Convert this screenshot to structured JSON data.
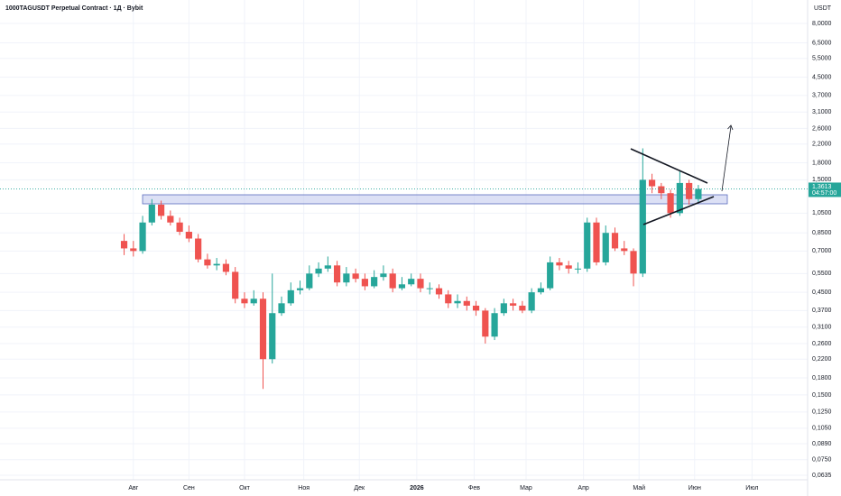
{
  "chart_data": {
    "type": "candlestick",
    "title": "1000TAGUSDT Perpetual Contract · 1Д · Bybit",
    "currency": "USDT",
    "log_scale": true,
    "grid": true,
    "up_color": "#26a69a",
    "down_color": "#ef5350",
    "x": [
      0,
      5,
      10,
      15,
      20,
      25,
      30,
      35,
      40,
      45,
      50,
      55,
      60,
      65,
      70,
      75,
      80,
      85,
      90,
      95,
      100,
      105,
      110,
      115,
      120,
      125,
      130,
      135,
      140,
      145,
      150,
      155,
      160,
      165,
      170,
      175,
      180,
      185,
      190,
      195,
      200,
      205,
      210,
      215,
      220,
      225,
      230,
      235,
      240,
      245,
      250,
      255,
      260,
      265,
      270,
      275,
      280,
      285,
      290,
      295,
      300,
      305,
      310
    ],
    "open": [
      0.78,
      0.72,
      0.7,
      0.95,
      1.15,
      1.02,
      0.95,
      0.86,
      0.8,
      0.64,
      0.6,
      0.61,
      0.56,
      0.42,
      0.4,
      0.42,
      0.22,
      0.36,
      0.4,
      0.46,
      0.47,
      0.55,
      0.58,
      0.6,
      0.5,
      0.55,
      0.52,
      0.48,
      0.53,
      0.55,
      0.47,
      0.49,
      0.52,
      0.47,
      0.47,
      0.44,
      0.4,
      0.41,
      0.39,
      0.37,
      0.28,
      0.36,
      0.4,
      0.39,
      0.37,
      0.45,
      0.47,
      0.62,
      0.6,
      0.58,
      0.58,
      0.95,
      0.62,
      0.85,
      0.72,
      0.7,
      0.55,
      1.5,
      1.4,
      1.3,
      1.05,
      1.45,
      1.22
    ],
    "high": [
      0.84,
      0.78,
      1.02,
      1.22,
      1.2,
      1.08,
      1.0,
      0.92,
      0.84,
      0.68,
      0.65,
      0.64,
      0.59,
      0.45,
      0.46,
      0.45,
      0.55,
      0.43,
      0.5,
      0.51,
      0.6,
      0.62,
      0.66,
      0.63,
      0.59,
      0.58,
      0.55,
      0.57,
      0.6,
      0.58,
      0.53,
      0.55,
      0.55,
      0.5,
      0.49,
      0.46,
      0.44,
      0.43,
      0.41,
      0.38,
      0.38,
      0.42,
      0.42,
      0.41,
      0.47,
      0.5,
      0.66,
      0.65,
      0.63,
      0.62,
      1.0,
      1.0,
      0.92,
      0.9,
      0.78,
      0.72,
      2.1,
      1.6,
      1.45,
      1.35,
      1.65,
      1.5,
      1.42
    ],
    "low": [
      0.67,
      0.66,
      0.68,
      0.92,
      0.98,
      0.92,
      0.83,
      0.77,
      0.62,
      0.58,
      0.57,
      0.54,
      0.4,
      0.38,
      0.39,
      0.16,
      0.21,
      0.35,
      0.39,
      0.44,
      0.46,
      0.53,
      0.56,
      0.48,
      0.48,
      0.5,
      0.46,
      0.47,
      0.51,
      0.45,
      0.46,
      0.48,
      0.45,
      0.44,
      0.42,
      0.38,
      0.38,
      0.37,
      0.35,
      0.26,
      0.27,
      0.35,
      0.37,
      0.36,
      0.36,
      0.44,
      0.46,
      0.57,
      0.55,
      0.55,
      0.56,
      0.6,
      0.6,
      0.7,
      0.67,
      0.48,
      0.53,
      1.3,
      1.22,
      1.0,
      1.02,
      1.15,
      1.18
    ],
    "close": [
      0.72,
      0.7,
      0.95,
      1.15,
      1.02,
      0.95,
      0.86,
      0.8,
      0.64,
      0.6,
      0.61,
      0.56,
      0.42,
      0.4,
      0.42,
      0.22,
      0.36,
      0.4,
      0.46,
      0.47,
      0.55,
      0.58,
      0.6,
      0.5,
      0.55,
      0.52,
      0.48,
      0.53,
      0.55,
      0.47,
      0.49,
      0.52,
      0.47,
      0.47,
      0.44,
      0.4,
      0.41,
      0.39,
      0.37,
      0.28,
      0.36,
      0.4,
      0.39,
      0.37,
      0.45,
      0.47,
      0.62,
      0.6,
      0.58,
      0.58,
      0.95,
      0.62,
      0.85,
      0.72,
      0.7,
      0.55,
      1.5,
      1.4,
      1.3,
      1.05,
      1.45,
      1.22,
      1.36
    ],
    "xlim": [
      -67,
      369
    ],
    "xticks": [
      {
        "value": 5,
        "label": "Авг"
      },
      {
        "value": 35,
        "label": "Сен"
      },
      {
        "value": 65,
        "label": "Окт"
      },
      {
        "value": 97,
        "label": "Ноя"
      },
      {
        "value": 127,
        "label": "Дек"
      },
      {
        "value": 158,
        "label": "2026"
      },
      {
        "value": 189,
        "label": "Фев"
      },
      {
        "value": 217,
        "label": "Мар"
      },
      {
        "value": 248,
        "label": "Апр"
      },
      {
        "value": 278,
        "label": "Май"
      },
      {
        "value": 308,
        "label": "Июн"
      },
      {
        "value": 339,
        "label": "Июл"
      }
    ],
    "ylim": [
      0.0605,
      10.28
    ],
    "yticks": [
      {
        "value": 8,
        "label": "8,0000"
      },
      {
        "value": 6.5,
        "label": "6,5000"
      },
      {
        "value": 5.5,
        "label": "5,5000"
      },
      {
        "value": 4.5,
        "label": "4,5000"
      },
      {
        "value": 3.7,
        "label": "3,7000"
      },
      {
        "value": 3.1,
        "label": "3,1000"
      },
      {
        "value": 2.6,
        "label": "2,6000"
      },
      {
        "value": 2.2,
        "label": "2,2000"
      },
      {
        "value": 1.8,
        "label": "1,8000"
      },
      {
        "value": 1.5,
        "label": "1,5000"
      },
      {
        "value": 1.05,
        "label": "1,0500"
      },
      {
        "value": 0.85,
        "label": "0,8500"
      },
      {
        "value": 0.7,
        "label": "0,7000"
      },
      {
        "value": 0.55,
        "label": "0,5500"
      },
      {
        "value": 0.45,
        "label": "0,4500"
      },
      {
        "value": 0.37,
        "label": "0,3700"
      },
      {
        "value": 0.31,
        "label": "0,3100"
      },
      {
        "value": 0.26,
        "label": "0,2600"
      },
      {
        "value": 0.22,
        "label": "0,2200"
      },
      {
        "value": 0.18,
        "label": "0,1800"
      },
      {
        "value": 0.15,
        "label": "0,1500"
      },
      {
        "value": 0.125,
        "label": "0,1250"
      },
      {
        "value": 0.105,
        "label": "0,1050"
      },
      {
        "value": 0.089,
        "label": "0,0890"
      },
      {
        "value": 0.075,
        "label": "0,0750"
      },
      {
        "value": 0.0635,
        "label": "0,0635"
      }
    ],
    "last_price": {
      "value": 1.3613,
      "label": "1,3613"
    },
    "countdown": "04:57:00"
  }
}
